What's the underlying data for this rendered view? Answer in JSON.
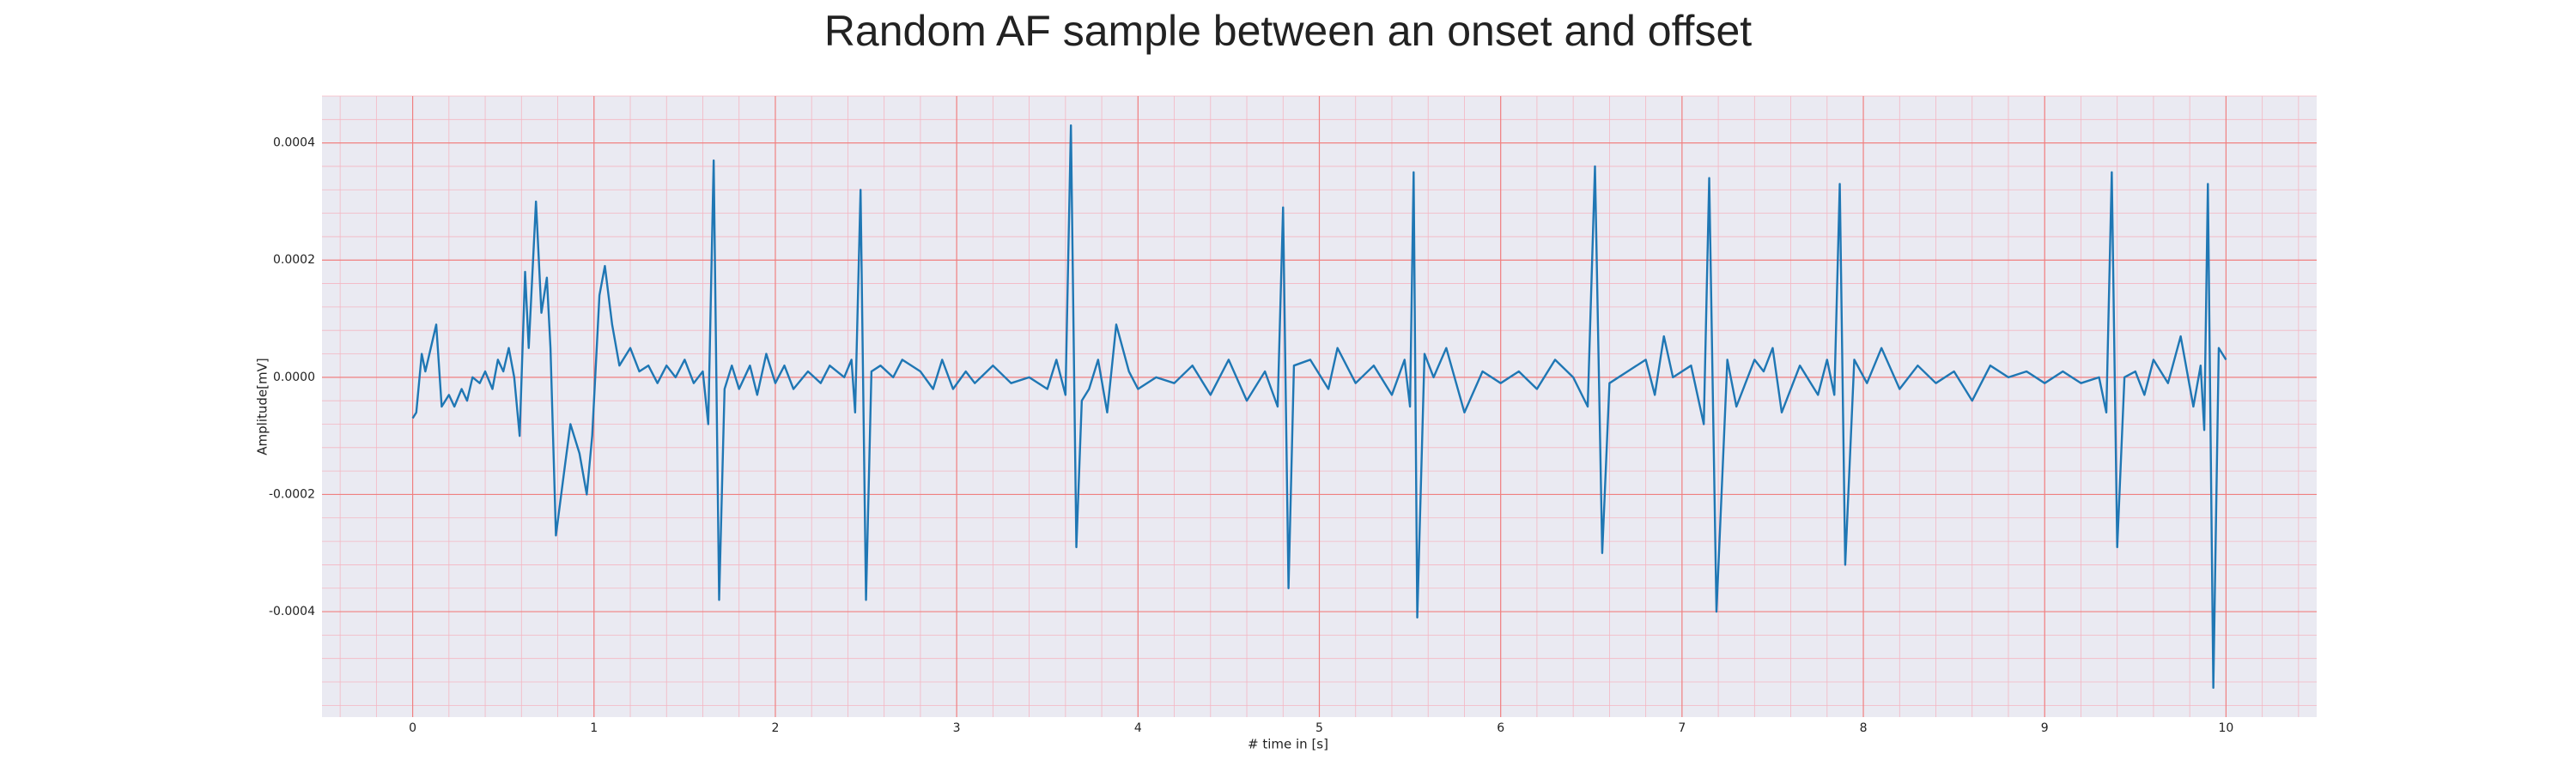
{
  "chart_data": {
    "type": "line",
    "title": "Random AF sample between an onset and offset",
    "x_label": "# time in [s]",
    "y_label": "Amplitude[mV]",
    "xlim": [
      -0.5,
      10.5
    ],
    "ylim": [
      -0.00058,
      0.00048
    ],
    "xticks": [
      0,
      1,
      2,
      3,
      4,
      5,
      6,
      7,
      8,
      9,
      10
    ],
    "yticks": [
      -0.0004,
      -0.0002,
      {
        "value": 0,
        "label": "0.0000"
      },
      0.0002,
      0.0004
    ],
    "grid": true,
    "series": [
      {
        "color": "#1f77b4",
        "x": [
          0,
          0.02,
          0.05,
          0.07,
          0.1,
          0.13,
          0.16,
          0.2,
          0.23,
          0.27,
          0.3,
          0.33,
          0.37,
          0.4,
          0.44,
          0.47,
          0.5,
          0.53,
          0.56,
          0.59,
          0.62,
          0.64,
          0.68,
          0.71,
          0.74,
          0.76,
          0.79,
          0.84,
          0.87,
          0.92,
          0.96,
          0.99,
          1.03,
          1.06,
          1.1,
          1.14,
          1.2,
          1.25,
          1.3,
          1.35,
          1.4,
          1.45,
          1.5,
          1.55,
          1.6,
          1.63,
          1.66,
          1.69,
          1.72,
          1.76,
          1.8,
          1.86,
          1.9,
          1.95,
          2.0,
          2.05,
          2.1,
          2.18,
          2.25,
          2.3,
          2.38,
          2.42,
          2.44,
          2.47,
          2.5,
          2.53,
          2.58,
          2.65,
          2.7,
          2.8,
          2.87,
          2.92,
          2.98,
          3.05,
          3.1,
          3.2,
          3.3,
          3.4,
          3.5,
          3.55,
          3.6,
          3.63,
          3.66,
          3.69,
          3.73,
          3.78,
          3.83,
          3.88,
          3.95,
          4.0,
          4.1,
          4.2,
          4.3,
          4.4,
          4.5,
          4.6,
          4.7,
          4.77,
          4.8,
          4.83,
          4.86,
          4.95,
          5.05,
          5.1,
          5.2,
          5.3,
          5.4,
          5.47,
          5.5,
          5.52,
          5.54,
          5.58,
          5.63,
          5.7,
          5.8,
          5.9,
          6.0,
          6.1,
          6.2,
          6.3,
          6.4,
          6.48,
          6.52,
          6.56,
          6.6,
          6.7,
          6.8,
          6.85,
          6.9,
          6.95,
          7.05,
          7.12,
          7.15,
          7.19,
          7.25,
          7.3,
          7.4,
          7.45,
          7.5,
          7.55,
          7.65,
          7.75,
          7.8,
          7.84,
          7.87,
          7.9,
          7.95,
          8.02,
          8.1,
          8.2,
          8.3,
          8.4,
          8.5,
          8.6,
          8.7,
          8.8,
          8.9,
          9.0,
          9.1,
          9.2,
          9.3,
          9.34,
          9.37,
          9.4,
          9.44,
          9.5,
          9.55,
          9.6,
          9.68,
          9.75,
          9.82,
          9.86,
          9.88,
          9.9,
          9.93,
          9.96,
          10.0
        ],
        "values": [
          -7e-05,
          -6e-05,
          4e-05,
          1e-05,
          5e-05,
          9e-05,
          -5e-05,
          -3e-05,
          -5e-05,
          -2e-05,
          -4e-05,
          0,
          -1e-05,
          1e-05,
          -2e-05,
          3e-05,
          1e-05,
          5e-05,
          0,
          -0.0001,
          0.00018,
          5e-05,
          0.0003,
          0.00011,
          0.00017,
          5e-05,
          -0.00027,
          -0.00015,
          -8e-05,
          -0.00013,
          -0.0002,
          -0.0001,
          0.00014,
          0.00019,
          9e-05,
          2e-05,
          5e-05,
          1e-05,
          2e-05,
          -1e-05,
          2e-05,
          0,
          3e-05,
          -1e-05,
          1e-05,
          -8e-05,
          0.00037,
          -0.00038,
          -2e-05,
          2e-05,
          -2e-05,
          2e-05,
          -3e-05,
          4e-05,
          -1e-05,
          2e-05,
          -2e-05,
          1e-05,
          -1e-05,
          2e-05,
          0,
          3e-05,
          -6e-05,
          0.00032,
          -0.00038,
          1e-05,
          2e-05,
          0,
          3e-05,
          1e-05,
          -2e-05,
          3e-05,
          -2e-05,
          1e-05,
          -1e-05,
          2e-05,
          -1e-05,
          0,
          -2e-05,
          3e-05,
          -3e-05,
          0.00043,
          -0.00029,
          -4e-05,
          -2e-05,
          3e-05,
          -6e-05,
          9e-05,
          1e-05,
          -2e-05,
          0,
          -1e-05,
          2e-05,
          -3e-05,
          3e-05,
          -4e-05,
          1e-05,
          -5e-05,
          0.00029,
          -0.00036,
          2e-05,
          3e-05,
          -2e-05,
          5e-05,
          -1e-05,
          2e-05,
          -3e-05,
          3e-05,
          -5e-05,
          0.00035,
          -0.00041,
          4e-05,
          0,
          5e-05,
          -6e-05,
          1e-05,
          -1e-05,
          1e-05,
          -2e-05,
          3e-05,
          0,
          -5e-05,
          0.00036,
          -0.0003,
          -1e-05,
          1e-05,
          3e-05,
          -3e-05,
          7e-05,
          0,
          2e-05,
          -8e-05,
          0.00034,
          -0.0004,
          3e-05,
          -5e-05,
          3e-05,
          1e-05,
          5e-05,
          -6e-05,
          2e-05,
          -3e-05,
          3e-05,
          -3e-05,
          0.00033,
          -0.00032,
          3e-05,
          -1e-05,
          5e-05,
          -2e-05,
          2e-05,
          -1e-05,
          1e-05,
          -4e-05,
          2e-05,
          0,
          1e-05,
          -1e-05,
          1e-05,
          -1e-05,
          0,
          -6e-05,
          0.00035,
          -0.00029,
          0,
          1e-05,
          -3e-05,
          3e-05,
          -1e-05,
          7e-05,
          -5e-05,
          2e-05,
          -9e-05,
          0.00033,
          -0.00053,
          5e-05,
          3e-05
        ]
      }
    ]
  }
}
